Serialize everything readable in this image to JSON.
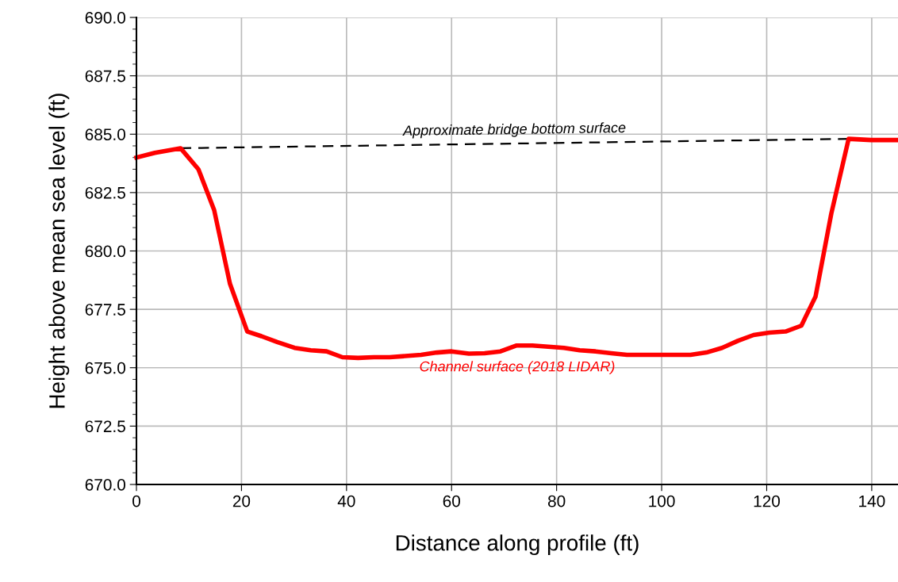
{
  "chart_data": {
    "type": "line",
    "xlabel": "Distance along profile (ft)",
    "ylabel": "Height above mean sea level (ft)",
    "xlim": [
      0,
      145
    ],
    "xticks": [
      0,
      20,
      40,
      60,
      80,
      100,
      120,
      140
    ],
    "ylim": [
      670,
      690
    ],
    "yticks": [
      {
        "value": 670,
        "label": "670.0"
      },
      {
        "value": 672.5,
        "label": "672.5"
      },
      {
        "value": 675,
        "label": "675.0"
      },
      {
        "value": 677.5,
        "label": "677.5"
      },
      {
        "value": 680,
        "label": "680.0"
      },
      {
        "value": 682.5,
        "label": "682.5"
      },
      {
        "value": 685,
        "label": "685.0"
      },
      {
        "value": 687.5,
        "label": "687.5"
      },
      {
        "value": 690,
        "label": "690.0"
      }
    ],
    "grid": true,
    "legend": false,
    "marker": "none",
    "series": [
      {
        "name": "Approximate bridge bottom surface",
        "color": "#000000",
        "line_style": "dashed",
        "x": [
          8.4,
          135.6
        ],
        "values": [
          684.4,
          684.8
        ]
      },
      {
        "name": "Channel surface (2018 LIDAR)",
        "color": "#ff0000",
        "line_style": "solid",
        "x": [
          0,
          3.5,
          8.4,
          11.8,
          14.8,
          17.8,
          21.1,
          23.8,
          26.8,
          30.1,
          33.2,
          36.2,
          39.2,
          42.2,
          45.2,
          48.2,
          51.2,
          54.2,
          57.2,
          60,
          63.3,
          66.3,
          69.3,
          72.3,
          75.4,
          78.4,
          81.4,
          84.4,
          87.4,
          90.4,
          93.4,
          96.4,
          99.5,
          102.5,
          105.5,
          108.5,
          111.5,
          114.5,
          117.5,
          120.5,
          123.6,
          126.6,
          129.3,
          132.3,
          135.6,
          139.9,
          145
        ],
        "values": [
          684.0,
          684.2,
          684.4,
          683.5,
          681.75,
          678.6,
          676.55,
          676.35,
          676.1,
          675.85,
          675.75,
          675.7,
          675.45,
          675.42,
          675.45,
          675.45,
          675.5,
          675.55,
          675.65,
          675.7,
          675.6,
          675.62,
          675.7,
          675.95,
          675.95,
          675.9,
          675.85,
          675.75,
          675.7,
          675.62,
          675.55,
          675.55,
          675.55,
          675.55,
          675.55,
          675.65,
          675.85,
          676.15,
          676.4,
          676.5,
          676.55,
          676.8,
          678.05,
          681.6,
          684.8,
          684.75,
          684.75
        ]
      }
    ]
  }
}
